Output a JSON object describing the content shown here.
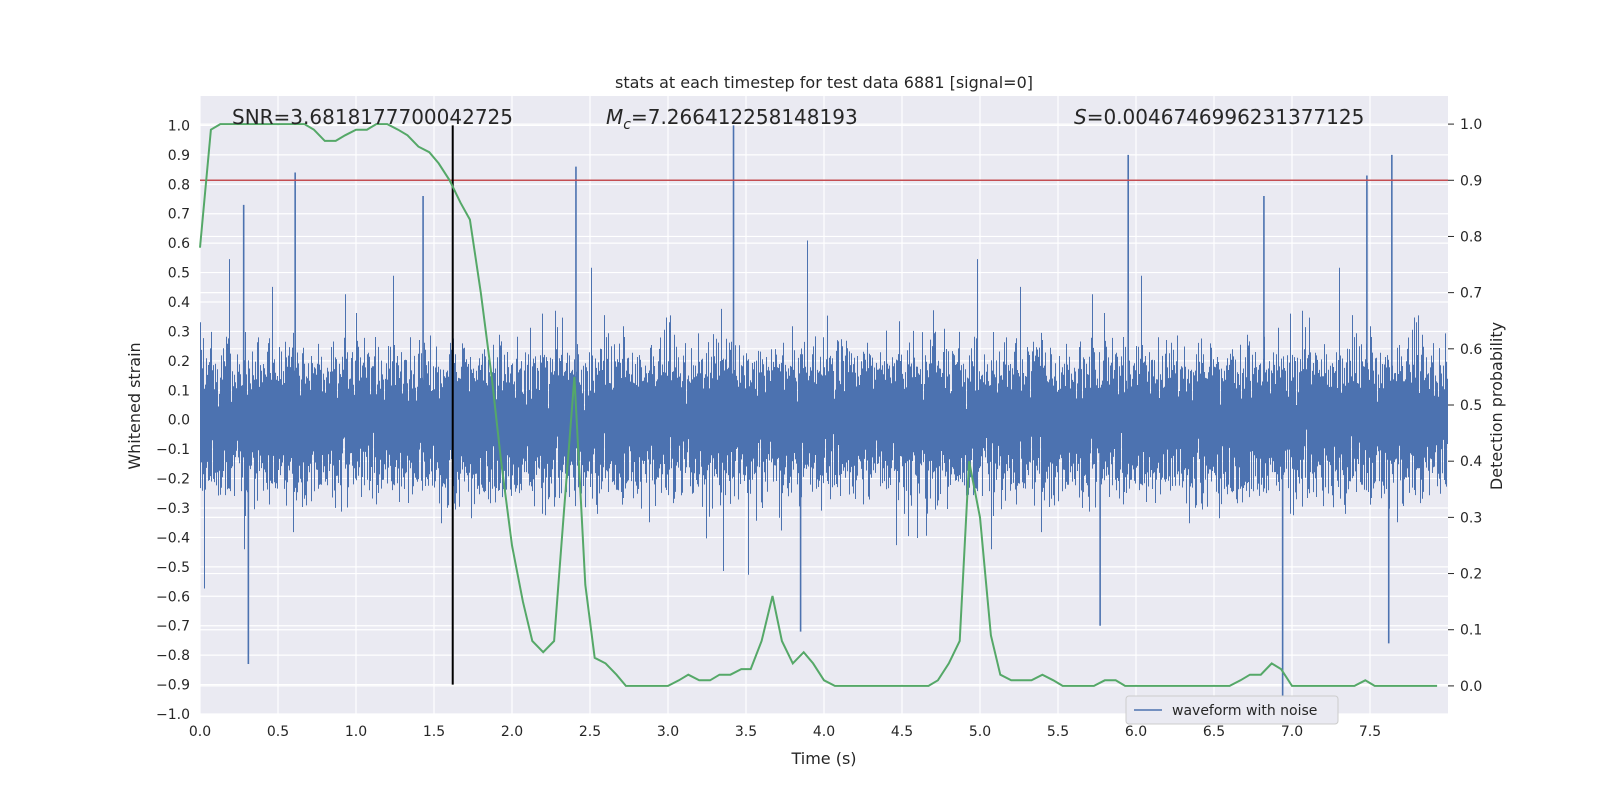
{
  "chart_data": {
    "type": "line",
    "title": "stats at each timestep for test data 6881 [signal=0]",
    "xlabel": "Time (s)",
    "ylabel": "Whitened strain",
    "y2label": "Detection probability",
    "xlim": [
      0,
      8
    ],
    "ylim": [
      -1.0,
      1.1
    ],
    "y2lim": [
      -0.05,
      1.05
    ],
    "x_ticks": [
      "0.0",
      "0.5",
      "1.0",
      "1.5",
      "2.0",
      "2.5",
      "3.0",
      "3.5",
      "4.0",
      "4.5",
      "5.0",
      "5.5",
      "6.0",
      "6.5",
      "7.0",
      "7.5"
    ],
    "y_ticks": [
      "−1.0",
      "−0.9",
      "−0.8",
      "−0.7",
      "−0.6",
      "−0.5",
      "−0.4",
      "−0.3",
      "−0.2",
      "−0.1",
      "0.0",
      "0.1",
      "0.2",
      "0.3",
      "0.4",
      "0.5",
      "0.6",
      "0.7",
      "0.8",
      "0.9",
      "1.0"
    ],
    "y2_ticks": [
      "0.0",
      "0.1",
      "0.2",
      "0.3",
      "0.4",
      "0.5",
      "0.6",
      "0.7",
      "0.8",
      "0.9",
      "1.0"
    ],
    "grid": true,
    "legend": {
      "placement": "lower-right",
      "entries": [
        "waveform with noise"
      ]
    },
    "annotations": {
      "snr": "SNR=3.6818177700042725",
      "mc_symbol": "M",
      "mc_sub": "c",
      "mc_value": "=7.266412258148193",
      "s_symbol": "S",
      "s_value": "=0.0046746996231377125"
    },
    "threshold_y2": 0.9,
    "event_time": 1.62,
    "event_ymin": -0.9,
    "event_ymax": 1.0,
    "waveform": {
      "name": "waveform with noise",
      "color": "#4c72b0",
      "sample_rate_hz": 2048,
      "duration_s": 8,
      "typical_amplitude": 0.2,
      "spikes": [
        {
          "t": 0.31,
          "y": -0.83
        },
        {
          "t": 0.28,
          "y": 0.73
        },
        {
          "t": 0.61,
          "y": 0.84
        },
        {
          "t": 1.43,
          "y": 0.76
        },
        {
          "t": 2.41,
          "y": 0.86
        },
        {
          "t": 3.42,
          "y": 1.0
        },
        {
          "t": 3.85,
          "y": -0.72
        },
        {
          "t": 5.95,
          "y": 0.9
        },
        {
          "t": 5.77,
          "y": -0.7
        },
        {
          "t": 6.94,
          "y": -0.98
        },
        {
          "t": 7.48,
          "y": 0.83
        },
        {
          "t": 7.64,
          "y": 0.9
        },
        {
          "t": 7.62,
          "y": -0.76
        },
        {
          "t": 6.82,
          "y": 0.76
        }
      ]
    },
    "probability": {
      "color": "#55a868",
      "x": [
        0.0,
        0.07,
        0.13,
        0.2,
        0.27,
        0.33,
        0.4,
        0.47,
        0.53,
        0.6,
        0.67,
        0.73,
        0.8,
        0.87,
        0.93,
        1.0,
        1.07,
        1.13,
        1.2,
        1.27,
        1.33,
        1.4,
        1.47,
        1.53,
        1.6,
        1.67,
        1.73,
        1.8,
        1.87,
        1.93,
        2.0,
        2.07,
        2.13,
        2.2,
        2.27,
        2.33,
        2.4,
        2.47,
        2.53,
        2.6,
        2.67,
        2.73,
        2.8,
        2.87,
        2.93,
        3.0,
        3.07,
        3.13,
        3.2,
        3.27,
        3.33,
        3.4,
        3.47,
        3.53,
        3.6,
        3.67,
        3.73,
        3.8,
        3.87,
        3.93,
        4.0,
        4.07,
        4.13,
        4.2,
        4.27,
        4.33,
        4.4,
        4.47,
        4.53,
        4.6,
        4.67,
        4.73,
        4.8,
        4.87,
        4.93,
        5.0,
        5.07,
        5.13,
        5.2,
        5.27,
        5.33,
        5.4,
        5.47,
        5.53,
        5.6,
        5.67,
        5.73,
        5.8,
        5.87,
        5.93,
        6.0,
        6.07,
        6.13,
        6.2,
        6.27,
        6.33,
        6.4,
        6.47,
        6.53,
        6.6,
        6.67,
        6.73,
        6.8,
        6.87,
        6.93,
        7.0,
        7.07,
        7.13,
        7.2,
        7.27,
        7.33,
        7.4,
        7.47,
        7.53,
        7.6,
        7.67,
        7.73,
        7.8,
        7.87,
        7.93
      ],
      "y": [
        0.78,
        0.99,
        1.0,
        1.0,
        1.0,
        1.0,
        1.0,
        1.0,
        1.0,
        1.0,
        1.0,
        0.99,
        0.97,
        0.97,
        0.98,
        0.99,
        0.99,
        1.0,
        1.0,
        0.99,
        0.98,
        0.96,
        0.95,
        0.93,
        0.9,
        0.86,
        0.83,
        0.7,
        0.55,
        0.4,
        0.25,
        0.15,
        0.08,
        0.06,
        0.08,
        0.3,
        0.55,
        0.18,
        0.05,
        0.04,
        0.02,
        0.0,
        0.0,
        0.0,
        0.0,
        0.0,
        0.01,
        0.02,
        0.01,
        0.01,
        0.02,
        0.02,
        0.03,
        0.03,
        0.08,
        0.16,
        0.08,
        0.04,
        0.06,
        0.04,
        0.01,
        0.0,
        0.0,
        0.0,
        0.0,
        0.0,
        0.0,
        0.0,
        0.0,
        0.0,
        0.0,
        0.01,
        0.04,
        0.08,
        0.4,
        0.3,
        0.09,
        0.02,
        0.01,
        0.01,
        0.01,
        0.02,
        0.01,
        0.0,
        0.0,
        0.0,
        0.0,
        0.01,
        0.01,
        0.0,
        0.0,
        0.0,
        0.0,
        0.0,
        0.0,
        0.0,
        0.0,
        0.0,
        0.0,
        0.0,
        0.01,
        0.02,
        0.02,
        0.04,
        0.03,
        0.0,
        0.0,
        0.0,
        0.0,
        0.0,
        0.0,
        0.0,
        0.01,
        0.0,
        0.0,
        0.0,
        0.0,
        0.0,
        0.0,
        0.0
      ]
    }
  }
}
